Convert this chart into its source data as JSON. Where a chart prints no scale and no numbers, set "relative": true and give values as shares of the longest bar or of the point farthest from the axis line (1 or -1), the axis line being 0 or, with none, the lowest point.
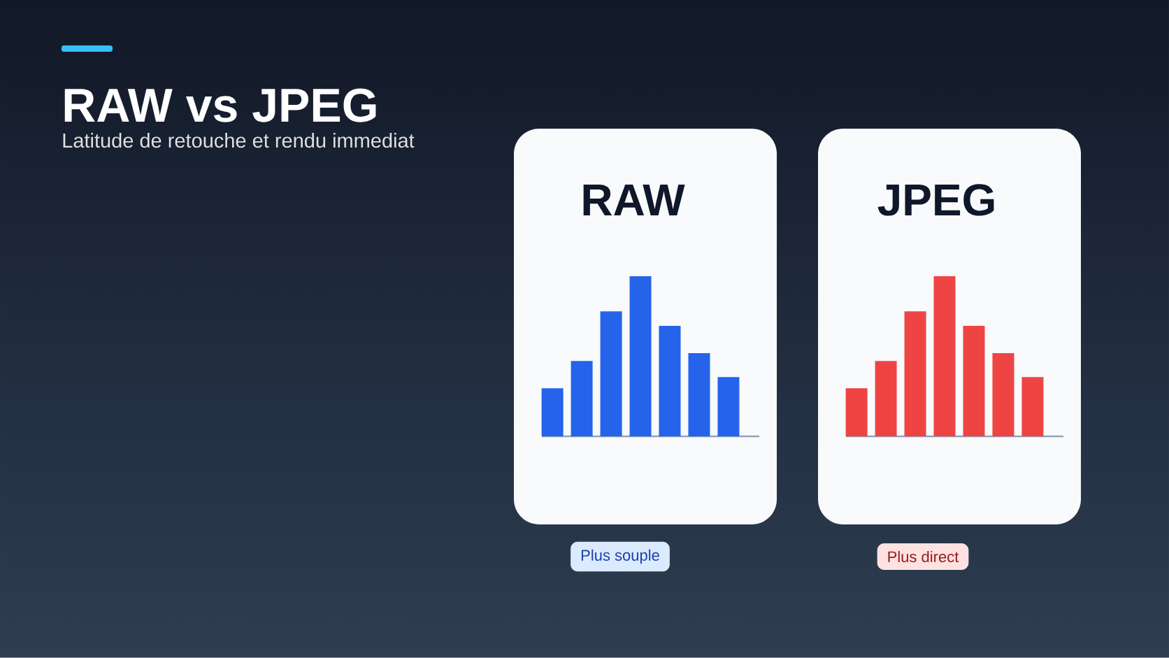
{
  "chart_data": [
    {
      "type": "other",
      "title": "RAW vs JPEG",
      "subtitle": "Latitude de retouche et rendu immediat"
    },
    {
      "type": "bar",
      "title": "RAW",
      "relative": true,
      "categories": [
        null,
        null,
        null,
        null,
        null,
        null,
        null
      ],
      "values": [
        0.3,
        0.47,
        0.78,
        1,
        0.69,
        0.52,
        0.37
      ],
      "color": "#2563eb",
      "annotations": [
        "Plus souple"
      ]
    },
    {
      "type": "bar",
      "title": "JPEG",
      "relative": true,
      "categories": [
        null,
        null,
        null,
        null,
        null,
        null,
        null
      ],
      "values": [
        0.3,
        0.47,
        0.78,
        1,
        0.69,
        0.52,
        0.37
      ],
      "color": "#ef4444",
      "annotations": [
        "Plus direct"
      ]
    }
  ]
}
